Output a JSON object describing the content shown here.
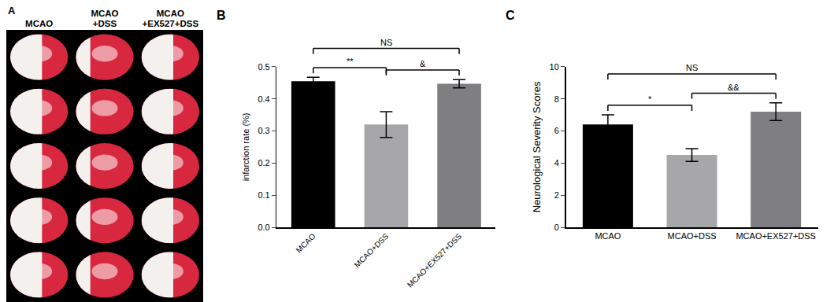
{
  "panel_a": {
    "label": "A",
    "columns": [
      [
        "MCAO"
      ],
      [
        "MCAO",
        "+DSS"
      ],
      [
        "MCAO",
        "+EX527+DSS"
      ]
    ]
  },
  "chart_data": [
    {
      "type": "bar",
      "title": "B",
      "categories": [
        "MCAO",
        "MCAO+DSS",
        "MCAO+EX527+DSS"
      ],
      "values": [
        0.455,
        0.32,
        0.447
      ],
      "errors": [
        0.012,
        0.04,
        0.013
      ],
      "colors": [
        "#000000",
        "#a7a7aa",
        "#7f7f81"
      ],
      "y_label": "infarction rate (%)",
      "ylim": [
        0,
        0.5
      ],
      "yticks": [
        {
          "value": 0,
          "label": "0.0"
        },
        0.1,
        0.2,
        0.3,
        0.4,
        0.5
      ],
      "annotations": [
        {
          "text": "**",
          "from": "MCAO",
          "to": "MCAO+DSS"
        },
        {
          "text": "&",
          "from": "MCAO+DSS",
          "to": "MCAO+EX527+DSS"
        },
        {
          "text": "NS",
          "from": "MCAO",
          "to": "MCAO+EX527+DSS"
        }
      ]
    },
    {
      "type": "bar",
      "title": "C",
      "categories": [
        "MCAO",
        "MCAO+DSS",
        "MCAO+EX527+DSS"
      ],
      "values": [
        6.4,
        4.5,
        7.2
      ],
      "errors": [
        0.6,
        0.4,
        0.55
      ],
      "colors": [
        "#000000",
        "#a7a7aa",
        "#7f7f81"
      ],
      "y_label": "Neurological Severity Scores",
      "ylim": [
        0,
        10
      ],
      "yticks": [
        0,
        2,
        4,
        6,
        8,
        10
      ],
      "annotations": [
        {
          "text": "*",
          "from": "MCAO",
          "to": "MCAO+DSS"
        },
        {
          "text": "&&",
          "from": "MCAO+DSS",
          "to": "MCAO+EX527+DSS"
        },
        {
          "text": "NS",
          "from": "MCAO",
          "to": "MCAO+EX527+DSS"
        }
      ]
    }
  ]
}
